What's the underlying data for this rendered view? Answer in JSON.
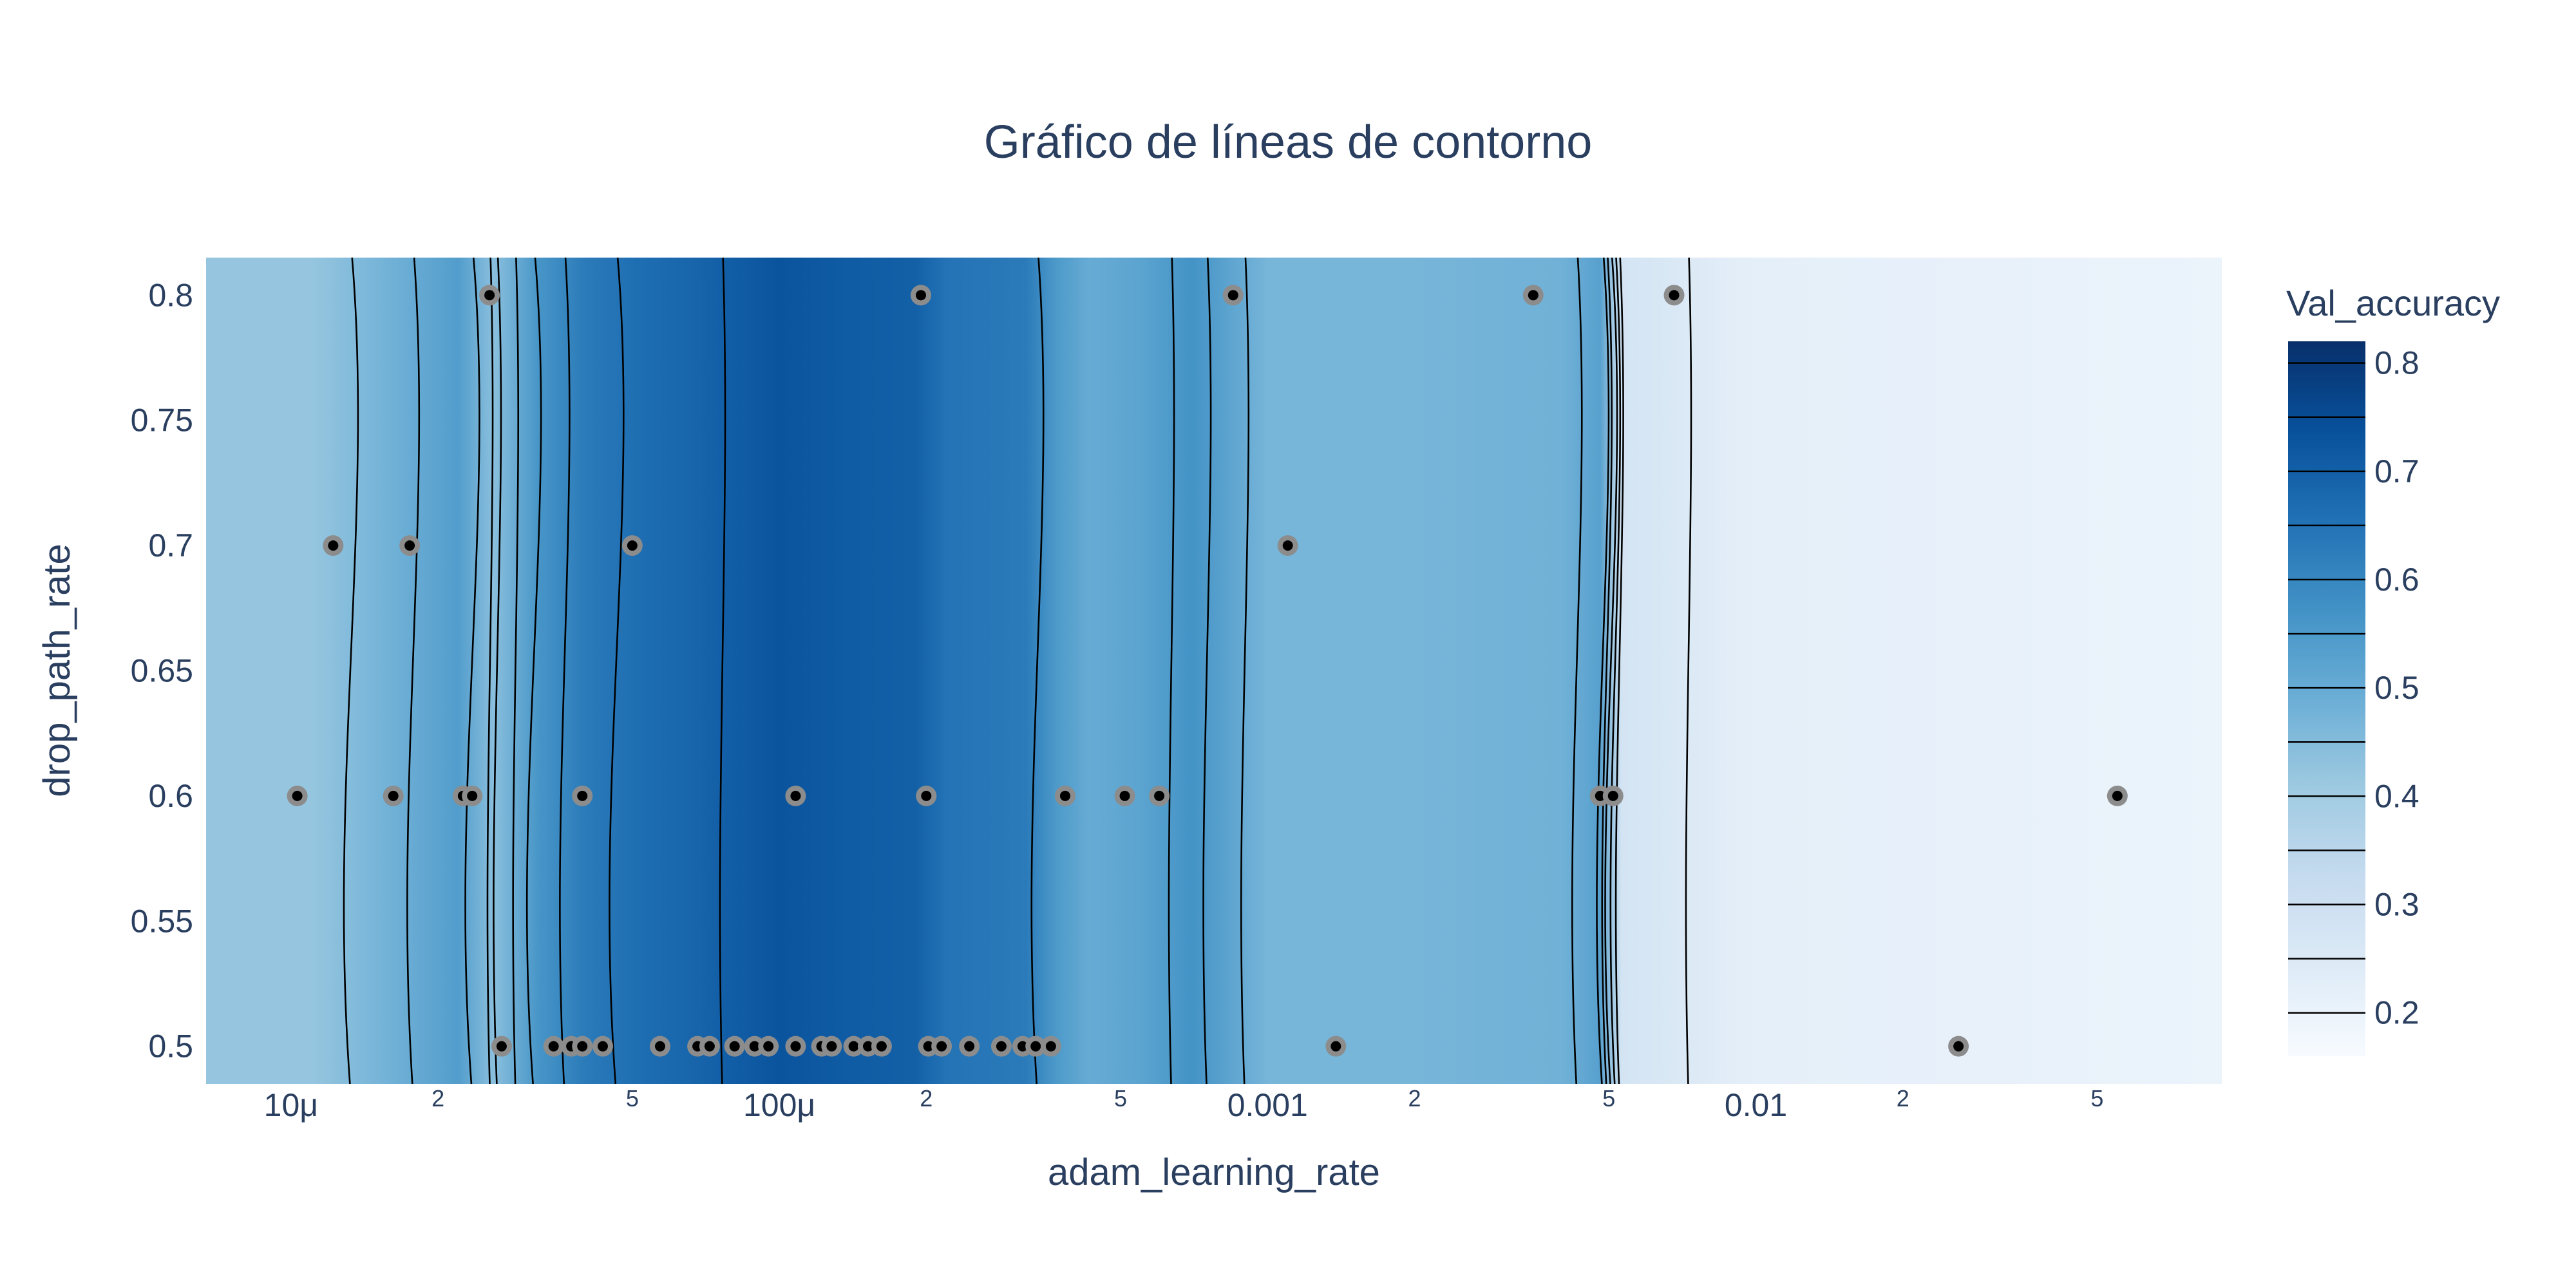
{
  "chart_data": {
    "type": "contour",
    "title": "Gráfico de líneas de contorno",
    "xlabel": "adam_learning_rate",
    "ylabel": "drop_path_rate",
    "x_scale": "log",
    "xlim": [
      6.7e-06,
      0.09
    ],
    "ylim": [
      0.485,
      0.815
    ],
    "x_ticks": [
      {
        "value": 1e-05,
        "label": "10μ",
        "major": true
      },
      {
        "value": 2e-05,
        "label": "2",
        "major": false
      },
      {
        "value": 5e-05,
        "label": "5",
        "major": false
      },
      {
        "value": 0.0001,
        "label": "100μ",
        "major": true
      },
      {
        "value": 0.0002,
        "label": "2",
        "major": false
      },
      {
        "value": 0.0005,
        "label": "5",
        "major": false
      },
      {
        "value": 0.001,
        "label": "0.001",
        "major": true
      },
      {
        "value": 0.002,
        "label": "2",
        "major": false
      },
      {
        "value": 0.005,
        "label": "5",
        "major": false
      },
      {
        "value": 0.01,
        "label": "0.01",
        "major": true
      },
      {
        "value": 0.02,
        "label": "2",
        "major": false
      },
      {
        "value": 0.05,
        "label": "5",
        "major": false
      }
    ],
    "y_ticks": [
      {
        "value": 0.5,
        "label": "0.5"
      },
      {
        "value": 0.55,
        "label": "0.55"
      },
      {
        "value": 0.6,
        "label": "0.6"
      },
      {
        "value": 0.65,
        "label": "0.65"
      },
      {
        "value": 0.7,
        "label": "0.7"
      },
      {
        "value": 0.75,
        "label": "0.75"
      },
      {
        "value": 0.8,
        "label": "0.8"
      }
    ],
    "colorbar": {
      "title": "Val_accuracy",
      "range": [
        0.16,
        0.82
      ],
      "ticks": [
        0.2,
        0.3,
        0.4,
        0.5,
        0.6,
        0.7,
        0.8
      ],
      "tick_labels": [
        "0.2",
        "0.3",
        "0.4",
        "0.5",
        "0.6",
        "0.7",
        "0.8"
      ],
      "levels": [
        0.2,
        0.25,
        0.3,
        0.35,
        0.4,
        0.45,
        0.5,
        0.55,
        0.6,
        0.65,
        0.7,
        0.75,
        0.8
      ],
      "colorscale": [
        "#f7fbff",
        "#deebf7",
        "#c6dbef",
        "#9ecae1",
        "#6baed6",
        "#4292c6",
        "#2171b5",
        "#08519c",
        "#08306b"
      ]
    },
    "x_profile": [
      [
        6.7e-06,
        0.42
      ],
      [
        1.1e-05,
        0.42
      ],
      [
        1.6e-05,
        0.48
      ],
      [
        2.2e-05,
        0.54
      ],
      [
        2.6e-05,
        0.44
      ],
      [
        3.2e-05,
        0.56
      ],
      [
        4e-05,
        0.63
      ],
      [
        5e-05,
        0.66
      ],
      [
        7e-05,
        0.69
      ],
      [
        0.0001,
        0.73
      ],
      [
        0.00014,
        0.71
      ],
      [
        0.00019,
        0.7
      ],
      [
        0.00022,
        0.65
      ],
      [
        0.00032,
        0.63
      ],
      [
        0.00037,
        0.55
      ],
      [
        0.00043,
        0.5
      ],
      [
        0.00055,
        0.52
      ],
      [
        0.0007,
        0.57
      ],
      [
        0.001,
        0.47
      ],
      [
        0.002,
        0.47
      ],
      [
        0.004,
        0.48
      ],
      [
        0.0048,
        0.53
      ],
      [
        0.0053,
        0.28
      ],
      [
        0.01,
        0.22
      ],
      [
        0.03,
        0.21
      ],
      [
        0.09,
        0.2
      ]
    ],
    "points": [
      {
        "x": 1.03e-05,
        "y": 0.6
      },
      {
        "x": 1.22e-05,
        "y": 0.7
      },
      {
        "x": 1.62e-05,
        "y": 0.6
      },
      {
        "x": 1.75e-05,
        "y": 0.7
      },
      {
        "x": 2.25e-05,
        "y": 0.6
      },
      {
        "x": 2.35e-05,
        "y": 0.6
      },
      {
        "x": 2.55e-05,
        "y": 0.8
      },
      {
        "x": 2.7e-05,
        "y": 0.5
      },
      {
        "x": 3.45e-05,
        "y": 0.5
      },
      {
        "x": 3.75e-05,
        "y": 0.5
      },
      {
        "x": 3.95e-05,
        "y": 0.6
      },
      {
        "x": 3.95e-05,
        "y": 0.5
      },
      {
        "x": 4.35e-05,
        "y": 0.5
      },
      {
        "x": 5e-05,
        "y": 0.7
      },
      {
        "x": 5.7e-05,
        "y": 0.5
      },
      {
        "x": 6.8e-05,
        "y": 0.5
      },
      {
        "x": 7.2e-05,
        "y": 0.5
      },
      {
        "x": 8.1e-05,
        "y": 0.5
      },
      {
        "x": 8.9e-05,
        "y": 0.5
      },
      {
        "x": 9.5e-05,
        "y": 0.5
      },
      {
        "x": 0.000108,
        "y": 0.5
      },
      {
        "x": 0.000108,
        "y": 0.6
      },
      {
        "x": 0.000122,
        "y": 0.5
      },
      {
        "x": 0.000128,
        "y": 0.5
      },
      {
        "x": 0.000142,
        "y": 0.5
      },
      {
        "x": 0.000152,
        "y": 0.5
      },
      {
        "x": 0.000162,
        "y": 0.5
      },
      {
        "x": 0.000195,
        "y": 0.8
      },
      {
        "x": 0.0002,
        "y": 0.6
      },
      {
        "x": 0.000202,
        "y": 0.5
      },
      {
        "x": 0.000215,
        "y": 0.5
      },
      {
        "x": 0.000245,
        "y": 0.5
      },
      {
        "x": 0.000285,
        "y": 0.5
      },
      {
        "x": 0.000315,
        "y": 0.5
      },
      {
        "x": 0.000335,
        "y": 0.5
      },
      {
        "x": 0.00036,
        "y": 0.5
      },
      {
        "x": 0.000385,
        "y": 0.6
      },
      {
        "x": 0.00051,
        "y": 0.6
      },
      {
        "x": 0.0006,
        "y": 0.6
      },
      {
        "x": 0.00085,
        "y": 0.8
      },
      {
        "x": 0.0011,
        "y": 0.7
      },
      {
        "x": 0.00138,
        "y": 0.5
      },
      {
        "x": 0.0035,
        "y": 0.8
      },
      {
        "x": 0.0048,
        "y": 0.6
      },
      {
        "x": 0.0051,
        "y": 0.6
      },
      {
        "x": 0.0068,
        "y": 0.8
      },
      {
        "x": 0.026,
        "y": 0.5
      },
      {
        "x": 0.055,
        "y": 0.6
      }
    ]
  }
}
